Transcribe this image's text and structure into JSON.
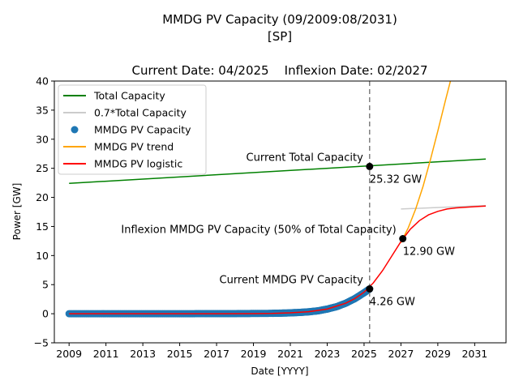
{
  "chart_data": {
    "type": "line",
    "title_lines": [
      "MMDG PV Capacity (09/2009:08/2031)",
      "[SP]"
    ],
    "subtitle": "Current Date: 04/2025    Inflexion Date: 02/2027",
    "xlabel": "Date [YYYY]",
    "ylabel": "Power [GW]",
    "xlim": [
      2008.2,
      2032.7
    ],
    "ylim": [
      -5,
      40
    ],
    "x_ticks": [
      2009,
      2011,
      2013,
      2015,
      2017,
      2019,
      2021,
      2023,
      2025,
      2027,
      2029,
      2031
    ],
    "x_tick_labels": [
      "2009",
      "2011",
      "2013",
      "2015",
      "2017",
      "2019",
      "2021",
      "2023",
      "2025",
      "2027",
      "2029",
      "2031"
    ],
    "y_ticks": [
      -5,
      0,
      5,
      10,
      15,
      20,
      25,
      30,
      35,
      40
    ],
    "y_tick_labels": [
      "−5",
      "0",
      "5",
      "10",
      "15",
      "20",
      "25",
      "30",
      "35",
      "40"
    ],
    "grid": false,
    "legend_position": "upper-left",
    "colors": {
      "total": "#008000",
      "total07": "#cccccc",
      "pv_capacity": "#1f77b4",
      "trend": "#ffa500",
      "logistic": "#ff0000",
      "current_line": "#808080",
      "marker": "#000000"
    },
    "series": [
      {
        "name": "Total Capacity",
        "kind": "line",
        "color": "#008000",
        "x": [
          2009.0,
          2031.6
        ],
        "y": [
          22.4,
          26.6
        ]
      },
      {
        "name": "0.7*Total Capacity",
        "kind": "line",
        "color": "#cccccc",
        "x": [
          2027.0,
          2031.6
        ],
        "y": [
          18.0,
          18.6
        ]
      },
      {
        "name": "MMDG PV Capacity",
        "kind": "scatter",
        "color": "#1f77b4",
        "x": [
          2009.0,
          2010.0,
          2011.0,
          2012.0,
          2013.0,
          2014.0,
          2015.0,
          2016.0,
          2017.0,
          2018.0,
          2019.0,
          2020.0,
          2020.5,
          2021.0,
          2021.5,
          2022.0,
          2022.5,
          2023.0,
          2023.5,
          2024.0,
          2024.5,
          2025.0,
          2025.3
        ],
        "y": [
          0.0,
          0.0,
          0.0,
          0.0,
          0.0,
          0.0,
          0.0,
          0.01,
          0.01,
          0.02,
          0.04,
          0.07,
          0.1,
          0.15,
          0.22,
          0.33,
          0.5,
          0.8,
          1.2,
          1.8,
          2.6,
          3.6,
          4.26
        ]
      },
      {
        "name": "MMDG PV trend",
        "kind": "line",
        "color": "#ffa500",
        "x": [
          2027.0,
          2027.4,
          2027.8,
          2028.2,
          2028.6,
          2029.0,
          2029.4,
          2029.7,
          2030.0
        ],
        "y": [
          12.2,
          14.8,
          18.0,
          21.9,
          26.5,
          31.4,
          36.5,
          40.2,
          44.0
        ]
      },
      {
        "name": "MMDG PV logistic",
        "kind": "line",
        "color": "#ff0000",
        "x": [
          2009.0,
          2013.0,
          2017.0,
          2019.0,
          2020.0,
          2021.0,
          2022.0,
          2023.0,
          2024.0,
          2024.5,
          2025.0,
          2025.5,
          2026.0,
          2026.5,
          2027.0,
          2027.5,
          2028.0,
          2028.5,
          2029.0,
          2029.5,
          2030.0,
          2030.5,
          2031.0,
          2031.6
        ],
        "y": [
          0.0,
          0.0,
          0.0,
          0.02,
          0.05,
          0.15,
          0.35,
          0.8,
          1.8,
          2.6,
          3.7,
          5.3,
          7.4,
          9.9,
          12.4,
          14.5,
          16.0,
          17.0,
          17.6,
          18.0,
          18.2,
          18.3,
          18.4,
          18.5
        ]
      }
    ],
    "current_date_x": 2025.3,
    "points": [
      {
        "x": 2025.3,
        "y": 25.32,
        "label": "25.32 GW"
      },
      {
        "x": 2027.1,
        "y": 12.9,
        "label": "12.90 GW"
      },
      {
        "x": 2025.3,
        "y": 4.26,
        "label": "4.26 GW"
      }
    ],
    "annotations": [
      {
        "text": "Current Total Capacity",
        "x": 2025.3,
        "y": 25.32
      },
      {
        "text": "Inflexion MMDG PV Capacity (50% of Total Capacity)",
        "x": 2027.1,
        "y": 12.9
      },
      {
        "text": "Current MMDG PV Capacity",
        "x": 2025.3,
        "y": 4.26
      }
    ]
  }
}
